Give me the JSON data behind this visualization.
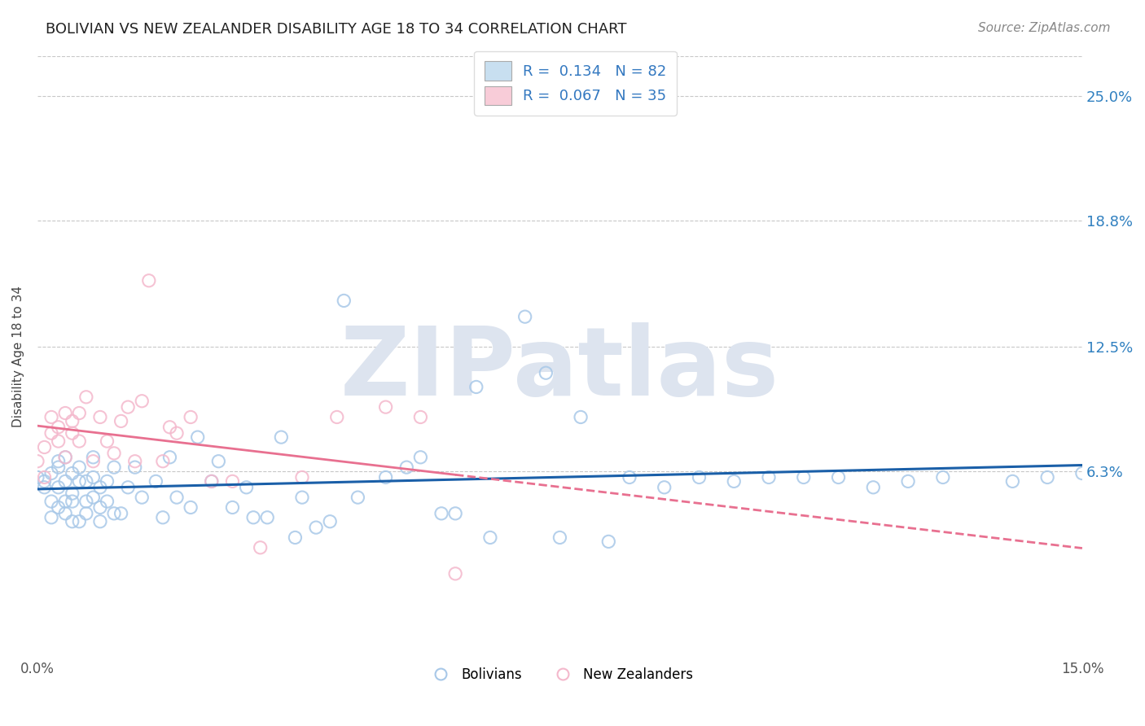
{
  "title": "BOLIVIAN VS NEW ZEALANDER DISABILITY AGE 18 TO 34 CORRELATION CHART",
  "source_text": "Source: ZipAtlas.com",
  "ylabel": "Disability Age 18 to 34",
  "xlim": [
    0.0,
    0.15
  ],
  "ylim": [
    -0.03,
    0.27
  ],
  "ytick_labels": [
    "6.3%",
    "12.5%",
    "18.8%",
    "25.0%"
  ],
  "ytick_vals": [
    0.063,
    0.125,
    0.188,
    0.25
  ],
  "legend_bolivians": "Bolivians",
  "legend_nz": "New Zealanders",
  "R_bolivians": 0.134,
  "N_bolivians": 82,
  "R_nz": 0.067,
  "N_nz": 35,
  "blue_color": "#a8c8e8",
  "blue_edge": "#7aafd0",
  "pink_color": "#f4b8cc",
  "pink_edge": "#e888a8",
  "trend_blue": "#1a5fa8",
  "trend_pink": "#e87090",
  "background": "#ffffff",
  "grid_color": "#c8c8c8",
  "watermark_color": "#dde4ef",
  "title_fontsize": 13,
  "source_fontsize": 11,
  "ylabel_fontsize": 11,
  "tick_fontsize": 12,
  "blue_x": [
    0.0,
    0.001,
    0.001,
    0.002,
    0.002,
    0.002,
    0.003,
    0.003,
    0.003,
    0.003,
    0.004,
    0.004,
    0.004,
    0.004,
    0.005,
    0.005,
    0.005,
    0.005,
    0.006,
    0.006,
    0.006,
    0.007,
    0.007,
    0.007,
    0.008,
    0.008,
    0.008,
    0.009,
    0.009,
    0.009,
    0.01,
    0.01,
    0.011,
    0.011,
    0.012,
    0.013,
    0.014,
    0.015,
    0.017,
    0.018,
    0.019,
    0.02,
    0.022,
    0.023,
    0.025,
    0.026,
    0.028,
    0.03,
    0.031,
    0.033,
    0.035,
    0.037,
    0.038,
    0.04,
    0.042,
    0.044,
    0.046,
    0.05,
    0.053,
    0.055,
    0.058,
    0.06,
    0.063,
    0.065,
    0.07,
    0.073,
    0.075,
    0.078,
    0.082,
    0.085,
    0.09,
    0.095,
    0.1,
    0.105,
    0.11,
    0.115,
    0.12,
    0.125,
    0.13,
    0.14,
    0.145,
    0.15
  ],
  "blue_y": [
    0.06,
    0.058,
    0.055,
    0.062,
    0.048,
    0.04,
    0.065,
    0.045,
    0.055,
    0.068,
    0.048,
    0.058,
    0.07,
    0.042,
    0.052,
    0.062,
    0.038,
    0.048,
    0.058,
    0.065,
    0.038,
    0.048,
    0.058,
    0.042,
    0.05,
    0.06,
    0.07,
    0.045,
    0.055,
    0.038,
    0.048,
    0.058,
    0.042,
    0.065,
    0.042,
    0.055,
    0.065,
    0.05,
    0.058,
    0.04,
    0.07,
    0.05,
    0.045,
    0.08,
    0.058,
    0.068,
    0.045,
    0.055,
    0.04,
    0.04,
    0.08,
    0.03,
    0.05,
    0.035,
    0.038,
    0.148,
    0.05,
    0.06,
    0.065,
    0.07,
    0.042,
    0.042,
    0.105,
    0.03,
    0.14,
    0.112,
    0.03,
    0.09,
    0.028,
    0.06,
    0.055,
    0.06,
    0.058,
    0.06,
    0.06,
    0.06,
    0.055,
    0.058,
    0.06,
    0.058,
    0.06,
    0.062
  ],
  "pink_x": [
    0.0,
    0.001,
    0.001,
    0.002,
    0.002,
    0.003,
    0.003,
    0.004,
    0.004,
    0.005,
    0.005,
    0.006,
    0.006,
    0.007,
    0.008,
    0.009,
    0.01,
    0.011,
    0.012,
    0.013,
    0.014,
    0.015,
    0.016,
    0.018,
    0.019,
    0.02,
    0.022,
    0.025,
    0.028,
    0.032,
    0.038,
    0.043,
    0.05,
    0.055,
    0.06
  ],
  "pink_y": [
    0.068,
    0.075,
    0.06,
    0.09,
    0.082,
    0.085,
    0.078,
    0.07,
    0.092,
    0.082,
    0.088,
    0.092,
    0.078,
    0.1,
    0.068,
    0.09,
    0.078,
    0.072,
    0.088,
    0.095,
    0.068,
    0.098,
    0.158,
    0.068,
    0.085,
    0.082,
    0.09,
    0.058,
    0.058,
    0.025,
    0.06,
    0.09,
    0.095,
    0.09,
    0.012
  ]
}
